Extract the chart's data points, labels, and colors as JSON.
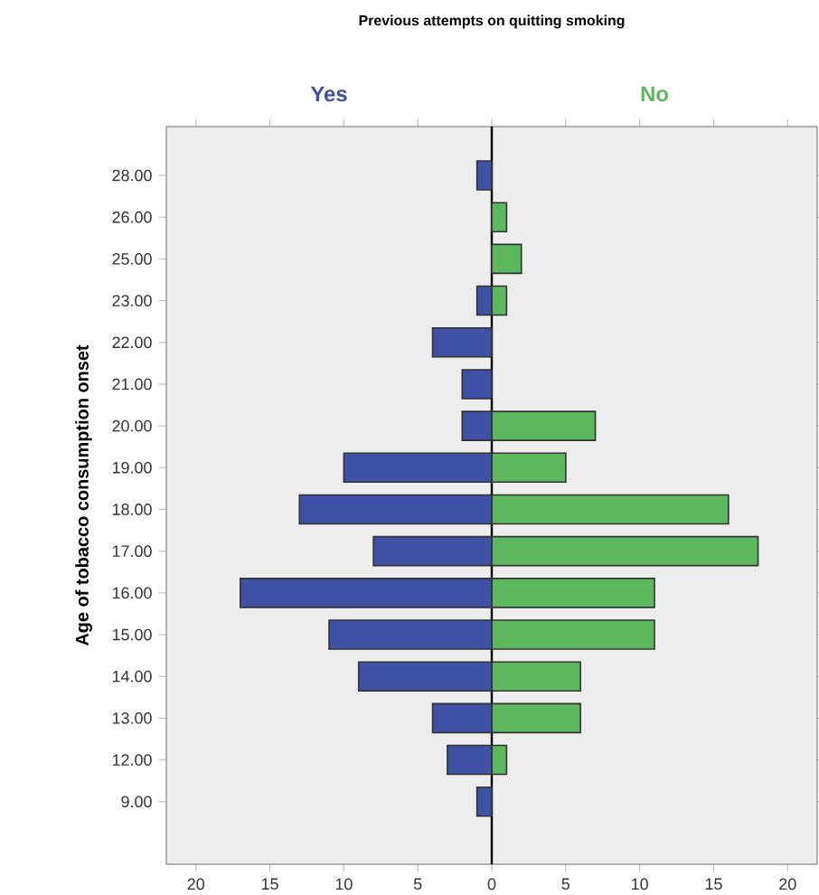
{
  "chart_data": {
    "type": "bar",
    "orientation": "horizontal",
    "title": "Previous attempts on quitting smoking",
    "ylabel": "Age of tobacco consumption onset",
    "categories": [
      "28.00",
      "26.00",
      "25.00",
      "23.00",
      "22.00",
      "21.00",
      "20.00",
      "19.00",
      "18.00",
      "17.00",
      "16.00",
      "15.00",
      "14.00",
      "13.00",
      "12.00",
      "9.00"
    ],
    "series": [
      {
        "name": "Yes",
        "color": "#3f51a5",
        "values": [
          -1,
          null,
          null,
          -1,
          -4,
          -2,
          -2,
          -10,
          -13,
          -8,
          -17,
          -11,
          -9,
          -4,
          -3,
          -1
        ]
      },
      {
        "name": "No",
        "color": "#5cb85c",
        "values": [
          null,
          1,
          2,
          1,
          null,
          null,
          7,
          5,
          16,
          18,
          11,
          11,
          6,
          6,
          1,
          null
        ]
      }
    ],
    "xlim": [
      -22,
      22
    ],
    "xticks": [
      {
        "value": -20,
        "label": "20"
      },
      {
        "value": -15,
        "label": "15"
      },
      {
        "value": -10,
        "label": "10"
      },
      {
        "value": -5,
        "label": "5"
      },
      0,
      5,
      10,
      15,
      20
    ],
    "stacked": true,
    "legend": false
  }
}
